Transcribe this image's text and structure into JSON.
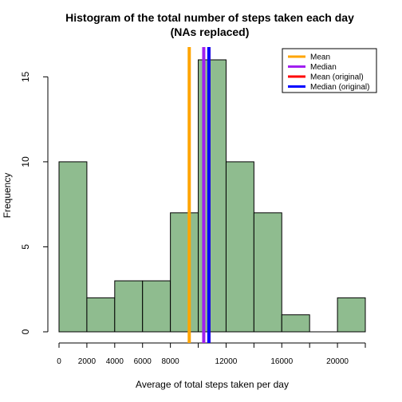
{
  "chart_data": {
    "type": "bar",
    "title_lines": [
      "Histogram of the total number of steps taken each day",
      "(NAs replaced)"
    ],
    "xlabel": "Average of total steps taken per day",
    "ylabel": "Frequency",
    "bins": [
      {
        "x0": 0,
        "x1": 2000,
        "count": 10
      },
      {
        "x0": 2000,
        "x1": 4000,
        "count": 2
      },
      {
        "x0": 4000,
        "x1": 6000,
        "count": 3
      },
      {
        "x0": 6000,
        "x1": 8000,
        "count": 3
      },
      {
        "x0": 8000,
        "x1": 10000,
        "count": 7
      },
      {
        "x0": 10000,
        "x1": 12000,
        "count": 16
      },
      {
        "x0": 12000,
        "x1": 14000,
        "count": 10
      },
      {
        "x0": 14000,
        "x1": 16000,
        "count": 7
      },
      {
        "x0": 16000,
        "x1": 18000,
        "count": 1
      },
      {
        "x0": 18000,
        "x1": 20000,
        "count": 0
      },
      {
        "x0": 20000,
        "x1": 22000,
        "count": 2
      }
    ],
    "bar_color": "#8fbc8f",
    "x_ticks": [
      0,
      2000,
      4000,
      6000,
      8000,
      10000,
      12000,
      14000,
      16000,
      18000,
      20000,
      22000
    ],
    "x_tick_labels": [
      "0",
      "2000",
      "4000",
      "6000",
      "8000",
      "",
      "12000",
      "",
      "16000",
      "",
      "20000",
      ""
    ],
    "y_ticks": [
      0,
      5,
      10,
      15
    ],
    "y_tick_labels": [
      "0",
      "5",
      "10",
      "15"
    ],
    "xlim": [
      0,
      22000
    ],
    "ylim": [
      0,
      16
    ],
    "vlines": [
      {
        "name": "Mean",
        "x": 9354,
        "color": "#ffa500"
      },
      {
        "name": "Median",
        "x": 10395,
        "color": "#a020f0"
      },
      {
        "name": "Mean (original)",
        "x": 10766,
        "color": "#ff0000"
      },
      {
        "name": "Median (original)",
        "x": 10765,
        "color": "#0000ff"
      }
    ],
    "legend": {
      "position": "top-right",
      "entries": [
        {
          "label": "Mean",
          "color": "#ffa500"
        },
        {
          "label": "Median",
          "color": "#a020f0"
        },
        {
          "label": "Mean (original)",
          "color": "#ff0000"
        },
        {
          "label": "Median (original)",
          "color": "#0000ff"
        }
      ]
    }
  }
}
